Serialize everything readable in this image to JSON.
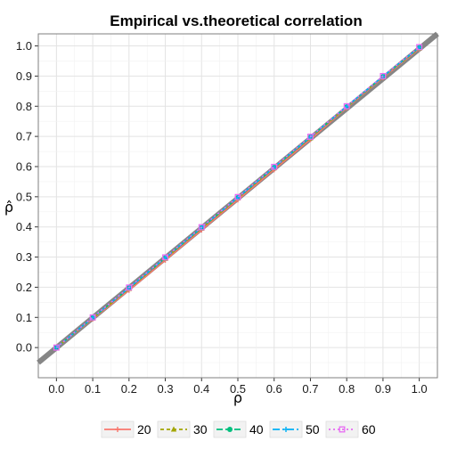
{
  "chart_data": {
    "type": "line",
    "title": "Empirical vs.theoretical correlation",
    "xlabel": "ρ",
    "ylabel": "ρ̂",
    "xlim": [
      -0.05,
      1.05
    ],
    "ylim": [
      -0.1,
      1.04
    ],
    "x_ticks": [
      "0.0",
      "0.1",
      "0.2",
      "0.3",
      "0.4",
      "0.5",
      "0.6",
      "0.7",
      "0.8",
      "0.9",
      "1.0"
    ],
    "y_ticks": [
      "0.0",
      "0.1",
      "0.2",
      "0.3",
      "0.4",
      "0.5",
      "0.6",
      "0.7",
      "0.8",
      "0.9",
      "1.0"
    ],
    "grid": true,
    "legend_position": "bottom",
    "x": [
      0.0,
      0.1,
      0.2,
      0.3,
      0.4,
      0.5,
      0.6,
      0.7,
      0.8,
      0.9,
      1.0
    ],
    "series": [
      {
        "name": "20",
        "color": "#F8766D",
        "dash": "",
        "marker": "plus",
        "values": [
          0.0,
          0.095,
          0.19,
          0.29,
          0.39,
          0.49,
          0.59,
          0.69,
          0.795,
          0.895,
          0.99
        ]
      },
      {
        "name": "30",
        "color": "#A3A500",
        "dash": "4,3",
        "marker": "triangle",
        "values": [
          0.0,
          0.097,
          0.195,
          0.295,
          0.395,
          0.495,
          0.595,
          0.695,
          0.797,
          0.897,
          0.992
        ]
      },
      {
        "name": "40",
        "color": "#00BF7D",
        "dash": "7,3",
        "marker": "circle",
        "values": [
          0.0,
          0.098,
          0.197,
          0.297,
          0.397,
          0.497,
          0.597,
          0.697,
          0.798,
          0.898,
          0.994
        ]
      },
      {
        "name": "50",
        "color": "#00B0F6",
        "dash": "8,3,2,3",
        "marker": "plus",
        "values": [
          0.0,
          0.099,
          0.198,
          0.298,
          0.398,
          0.498,
          0.598,
          0.698,
          0.799,
          0.899,
          0.995
        ]
      },
      {
        "name": "60",
        "color": "#E76BF3",
        "dash": "2,3",
        "marker": "square",
        "values": [
          0.0,
          0.1,
          0.199,
          0.299,
          0.399,
          0.499,
          0.599,
          0.699,
          0.8,
          0.9,
          0.996
        ]
      }
    ],
    "reference_line": {
      "color": "#808080",
      "slope": 1,
      "intercept": 0
    }
  }
}
